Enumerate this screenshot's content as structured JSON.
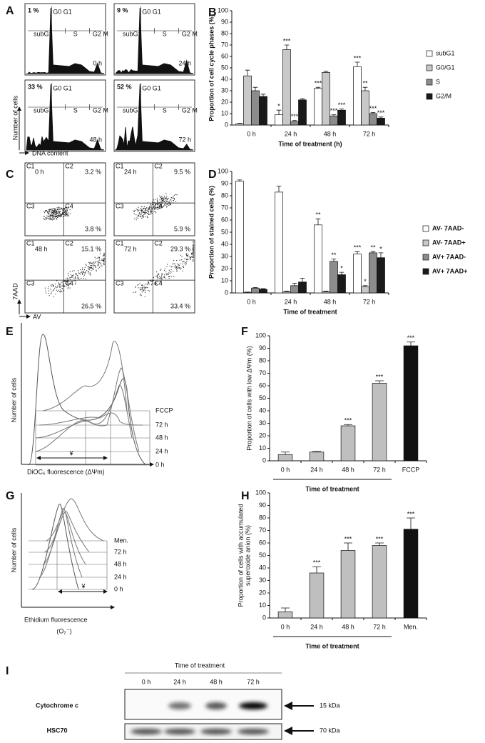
{
  "panel_a": {
    "letter": "A",
    "percents": [
      "1 %",
      "9 %",
      "33 %",
      "52 %"
    ],
    "times": [
      "0 h",
      "24 h",
      "48 h",
      "72 h"
    ],
    "gates": [
      "G0 G1",
      "subG1",
      "S",
      "G2 M"
    ],
    "y_axis_label": "Number of cells",
    "x_axis_label": "DNA content"
  },
  "panel_c": {
    "letter": "C",
    "times": [
      "0 h",
      "24 h",
      "48 h",
      "72 h"
    ],
    "quadrants": [
      "C1",
      "C2",
      "C3",
      "C4"
    ],
    "upper_right": [
      "3.2 %",
      "9.5 %",
      "15.1 %",
      "29.3 %"
    ],
    "lower_right": [
      "3.8 %",
      "5.9 %",
      "26.5 %",
      "33.4 %"
    ],
    "y_axis_label": "7AAD",
    "x_axis_label": "AV"
  },
  "panel_e": {
    "letter": "E",
    "traces": [
      "FCCP",
      "72 h",
      "48 h",
      "24 h",
      "0 h"
    ],
    "y_axis_label": "Number of cells",
    "x_axis_label": "DiOC₆ fluorescence (ΔΨm)",
    "gate": "¥"
  },
  "panel_g": {
    "letter": "G",
    "traces": [
      "Men.",
      "72 h",
      "48 h",
      "24 h",
      "0 h"
    ],
    "y_axis_label": "Number of cells",
    "x_axis_label": "Ethidium fluorescence",
    "x_axis_unit": "(O₂⁻)",
    "gate": "¥"
  },
  "panel_i": {
    "letter": "I",
    "header": "Time of treatment",
    "lanes": [
      "0 h",
      "24 h",
      "48 h",
      "72 h"
    ],
    "proteins": [
      "Cytochrome c",
      "HSC70"
    ],
    "sizes": [
      "15 kDa",
      "70 kDa"
    ]
  },
  "chart_data": [
    {
      "type": "bar",
      "panel": "B",
      "ylabel": "Proportion of cell cycle phases (%)",
      "xlabel": "Time of treatment (h)",
      "categories": [
        "0 h",
        "24 h",
        "48 h",
        "72 h"
      ],
      "ylim": [
        0,
        100
      ],
      "yticks": [
        0,
        10,
        20,
        30,
        40,
        50,
        60,
        70,
        80,
        90,
        100
      ],
      "series": [
        {
          "name": "subG1",
          "color": "#ffffff",
          "values": [
            1,
            9,
            32,
            51
          ],
          "errors": [
            0.5,
            4,
            1,
            4
          ],
          "annotations": [
            null,
            "*",
            "***",
            "***"
          ]
        },
        {
          "name": "G0/G1",
          "color": "#c8c8c8",
          "values": [
            43,
            66,
            46,
            30
          ],
          "errors": [
            5,
            4,
            1,
            3
          ],
          "annotations": [
            null,
            "***",
            null,
            "**"
          ]
        },
        {
          "name": "S",
          "color": "#8c8c8c",
          "values": [
            30,
            3,
            8,
            10
          ],
          "errors": [
            3,
            1,
            1,
            1
          ],
          "annotations": [
            null,
            "***",
            "***",
            "***"
          ]
        },
        {
          "name": "G2/M",
          "color": "#1a1a1a",
          "values": [
            25,
            22,
            13,
            6
          ],
          "errors": [
            2,
            1,
            1,
            1
          ],
          "annotations": [
            null,
            null,
            "***",
            "***"
          ]
        }
      ]
    },
    {
      "type": "bar",
      "panel": "D",
      "ylabel": "Proportion of stained cells (%)",
      "xlabel": "Time of treatment",
      "categories": [
        "0 h",
        "24 h",
        "48 h",
        "72 h"
      ],
      "ylim": [
        0,
        100
      ],
      "yticks": [
        0,
        10,
        20,
        30,
        40,
        50,
        60,
        70,
        80,
        90,
        100
      ],
      "series": [
        {
          "name": "AV- 7AAD-",
          "color": "#ffffff",
          "values": [
            92,
            83,
            56,
            32
          ],
          "errors": [
            1,
            5,
            5,
            2
          ],
          "annotations": [
            null,
            null,
            "**",
            "***"
          ]
        },
        {
          "name": "AV- 7AAD+",
          "color": "#c8c8c8",
          "values": [
            0.5,
            1,
            1,
            5
          ],
          "errors": [
            0.2,
            0.5,
            0.5,
            1
          ],
          "annotations": [
            null,
            null,
            null,
            "*"
          ]
        },
        {
          "name": "AV+ 7AAD-",
          "color": "#8c8c8c",
          "values": [
            4,
            6,
            26,
            33
          ],
          "errors": [
            0.5,
            2,
            2,
            1
          ],
          "annotations": [
            null,
            null,
            "**",
            "**"
          ]
        },
        {
          "name": "AV+ 7AAD+",
          "color": "#1a1a1a",
          "values": [
            3,
            9,
            15,
            29
          ],
          "errors": [
            0.5,
            3,
            2,
            4
          ],
          "annotations": [
            null,
            null,
            "*",
            "*"
          ]
        }
      ]
    },
    {
      "type": "bar",
      "panel": "F",
      "ylabel": "Proportion of cells with low ΔΨm (%)",
      "xlabel": "Time of treatment",
      "categories": [
        "0 h",
        "24 h",
        "48 h",
        "72 h",
        "FCCP"
      ],
      "ylim": [
        0,
        100
      ],
      "yticks": [
        0,
        10,
        20,
        30,
        40,
        50,
        60,
        70,
        80,
        90,
        100
      ],
      "values": [
        5,
        7,
        28,
        62,
        92
      ],
      "errors": [
        2,
        0.5,
        1,
        2,
        3
      ],
      "colors": [
        "#bfbfbf",
        "#bfbfbf",
        "#bfbfbf",
        "#bfbfbf",
        "#111111"
      ],
      "annotations": [
        null,
        null,
        "***",
        "***",
        "***"
      ]
    },
    {
      "type": "bar",
      "panel": "H",
      "ylabel": [
        "Proportion of cells with accumulated",
        "superoxide anion (%)"
      ],
      "xlabel": "Time of treatment",
      "categories": [
        "0 h",
        "24 h",
        "48 h",
        "72 h",
        "Men."
      ],
      "ylim": [
        0,
        100
      ],
      "yticks": [
        0,
        10,
        20,
        30,
        40,
        50,
        60,
        70,
        80,
        90,
        100
      ],
      "values": [
        5,
        36,
        54,
        58,
        71
      ],
      "errors": [
        3,
        5,
        6,
        2,
        9
      ],
      "colors": [
        "#bfbfbf",
        "#bfbfbf",
        "#bfbfbf",
        "#bfbfbf",
        "#111111"
      ],
      "annotations": [
        null,
        "***",
        "***",
        "***",
        "***"
      ]
    }
  ]
}
